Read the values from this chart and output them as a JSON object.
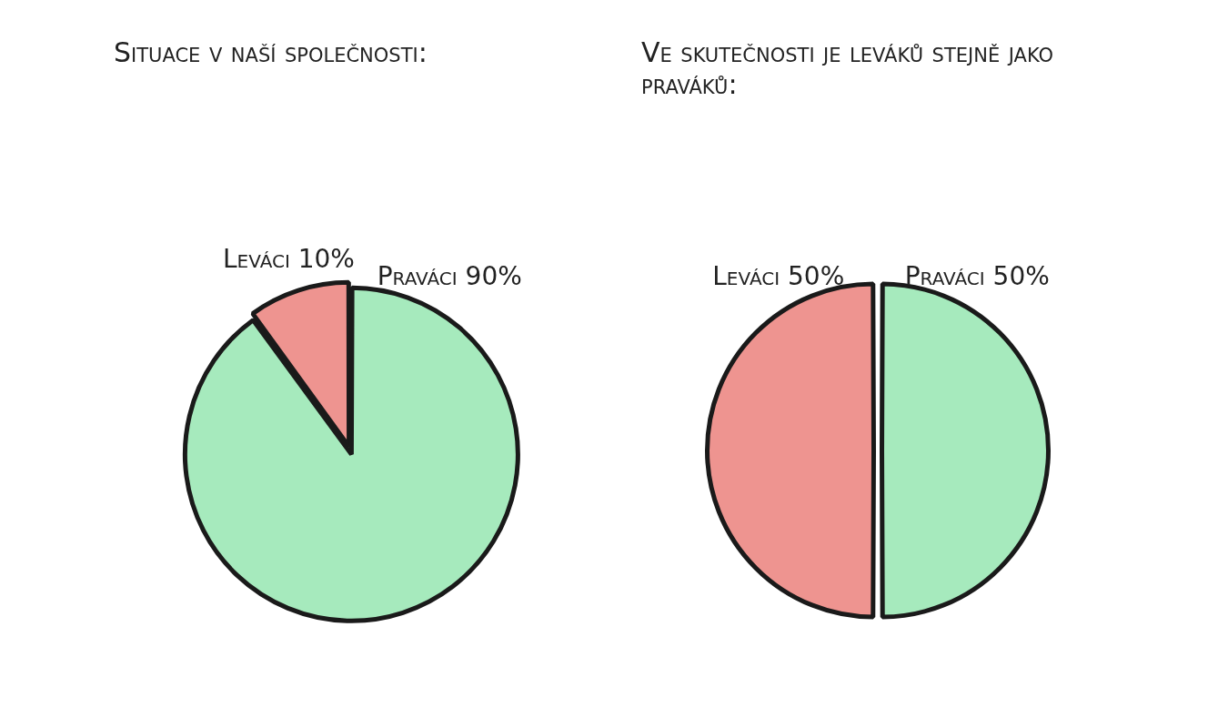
{
  "chart_data": [
    {
      "type": "pie",
      "title": "Situace v naší společnosti:",
      "categories": [
        "Leváci",
        "Praváci"
      ],
      "values": [
        10,
        90
      ],
      "colors": [
        "#ee9490",
        "#a6eabd"
      ],
      "value_labels": [
        "10%",
        "90%"
      ],
      "legend": false
    },
    {
      "type": "pie",
      "title": "Ve skutečnosti je leváků stejně jako praváků:",
      "categories": [
        "Leváci",
        "Praváci"
      ],
      "values": [
        50,
        50
      ],
      "colors": [
        "#ee9490",
        "#a6eabd"
      ],
      "value_labels": [
        "50%",
        "50%"
      ],
      "legend": false
    }
  ]
}
